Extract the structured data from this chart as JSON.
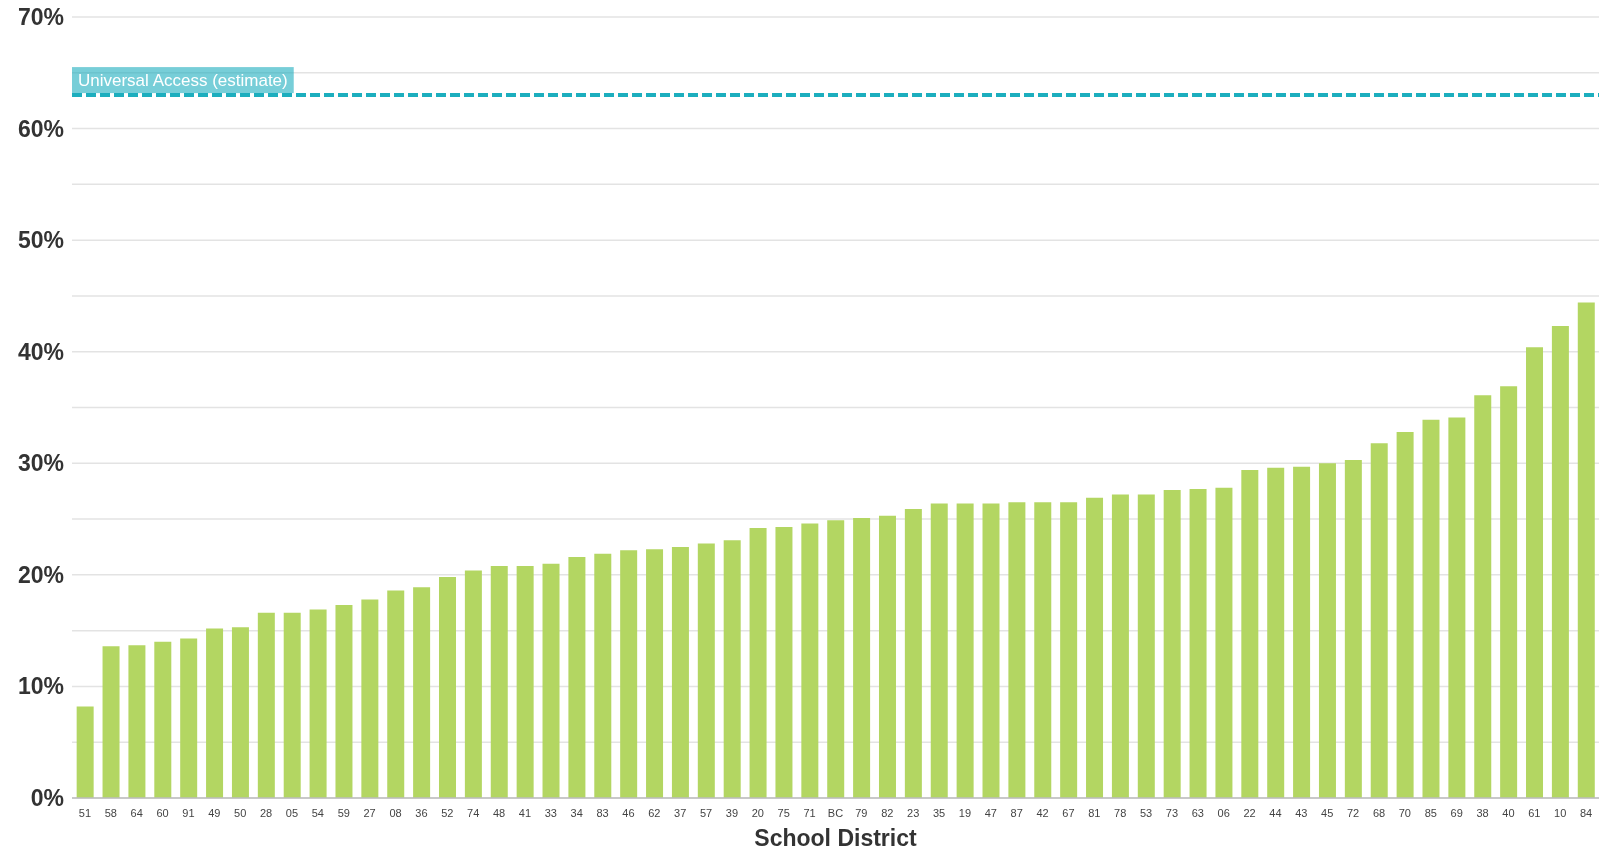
{
  "chart_data": {
    "type": "bar",
    "xlabel": "School District",
    "categories": [
      "51",
      "58",
      "64",
      "60",
      "91",
      "49",
      "50",
      "28",
      "05",
      "54",
      "59",
      "27",
      "08",
      "36",
      "52",
      "74",
      "48",
      "41",
      "33",
      "34",
      "83",
      "46",
      "62",
      "37",
      "57",
      "39",
      "20",
      "75",
      "71",
      "BC",
      "79",
      "82",
      "23",
      "35",
      "19",
      "47",
      "87",
      "42",
      "67",
      "81",
      "78",
      "53",
      "73",
      "63",
      "06",
      "22",
      "44",
      "43",
      "45",
      "72",
      "68",
      "70",
      "85",
      "69",
      "38",
      "40",
      "61",
      "10",
      "84"
    ],
    "values": [
      8.2,
      13.6,
      13.7,
      14.0,
      14.3,
      15.2,
      15.3,
      16.6,
      16.6,
      16.9,
      17.3,
      17.8,
      18.6,
      18.9,
      19.8,
      20.4,
      20.8,
      20.8,
      21.0,
      21.6,
      21.9,
      22.2,
      22.3,
      22.5,
      22.8,
      23.1,
      24.2,
      24.3,
      24.6,
      24.9,
      25.1,
      25.3,
      25.9,
      26.4,
      26.4,
      26.4,
      26.5,
      26.5,
      26.5,
      26.9,
      27.2,
      27.2,
      27.6,
      27.7,
      27.8,
      29.4,
      29.6,
      29.7,
      30.0,
      30.3,
      31.8,
      32.8,
      33.9,
      34.1,
      36.1,
      36.9,
      40.4,
      42.3,
      44.4
    ],
    "color": "#b3d662",
    "ylim": [
      0,
      70
    ],
    "yticks": [
      {
        "value": 0,
        "label": "0%"
      },
      {
        "value": 5,
        "label": null
      },
      {
        "value": 10,
        "label": "10%"
      },
      {
        "value": 15,
        "label": null
      },
      {
        "value": 20,
        "label": "20%"
      },
      {
        "value": 25,
        "label": null
      },
      {
        "value": 30,
        "label": "30%"
      },
      {
        "value": 35,
        "label": null
      },
      {
        "value": 40,
        "label": "40%"
      },
      {
        "value": 45,
        "label": null
      },
      {
        "value": 50,
        "label": "50%"
      },
      {
        "value": 55,
        "label": null
      },
      {
        "value": 60,
        "label": "60%"
      },
      {
        "value": 65,
        "label": null
      },
      {
        "value": 70,
        "label": "70%"
      }
    ],
    "grid": "y",
    "ref_lines": [
      {
        "axis": "y",
        "value": 63,
        "label": "Universal Access (estimate)",
        "color": "#1caebe",
        "line_style": "dashed"
      }
    ]
  }
}
